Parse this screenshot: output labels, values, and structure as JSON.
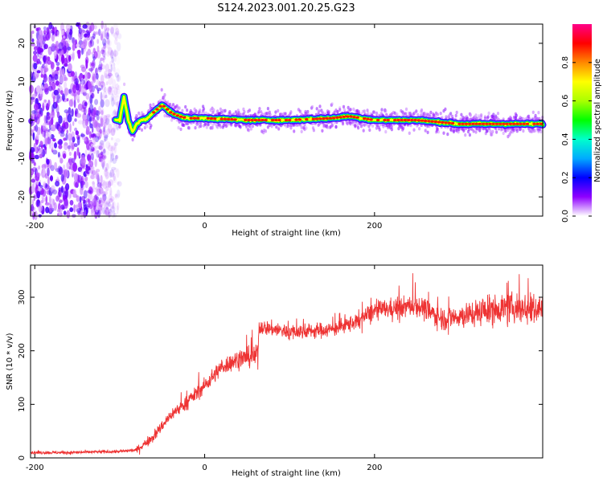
{
  "figure_title": "S124.2023.001.20.25.G23",
  "chart_data": [
    {
      "type": "heatmap",
      "name": "spectrogram",
      "xlabel": "Height of straight line (km)",
      "ylabel": "Frequency (Hz)",
      "xlim": [
        -205,
        398
      ],
      "ylim": [
        -25,
        25
      ],
      "xticks": [
        -200,
        0,
        200
      ],
      "yticks": [
        -20,
        -10,
        0,
        10,
        20
      ],
      "colorbar": {
        "label": "Normalized spectral amplitude",
        "range": [
          0,
          1
        ],
        "ticks": [
          "0.0",
          "0.2",
          "0.4",
          "0.6",
          "0.8"
        ],
        "colors": [
          "#ffffff",
          "#8f00ff",
          "#0000ff",
          "#00aaff",
          "#00ffcc",
          "#00ff00",
          "#aaff00",
          "#ffff00",
          "#ff8800",
          "#ff0000",
          "#ff0088"
        ]
      },
      "ridge": {
        "x": [
          -110,
          -100,
          -95,
          -90,
          -85,
          -80,
          -75,
          -70,
          -60,
          -50,
          -40,
          -30,
          -20,
          0,
          50,
          100,
          150,
          170,
          200,
          250,
          300,
          350,
          398
        ],
        "y": [
          0,
          0,
          6,
          0,
          -3,
          -1,
          0,
          0,
          2,
          4,
          2,
          1,
          0.5,
          0.5,
          0,
          0,
          0.5,
          1,
          0,
          0,
          -1,
          -1,
          -1
        ]
      },
      "noise_region_x": [
        -205,
        -100
      ]
    },
    {
      "type": "line",
      "name": "snr",
      "xlabel": "Height of straight line (km)",
      "ylabel": "SNR (10 * v/v)",
      "xlim": [
        -205,
        398
      ],
      "ylim": [
        0,
        360
      ],
      "xticks": [
        -200,
        0,
        200
      ],
      "yticks": [
        0,
        100,
        200,
        300
      ],
      "color": "#ee3333",
      "trend": {
        "x": [
          -205,
          -160,
          -100,
          -80,
          -60,
          -40,
          -20,
          0,
          20,
          40,
          60,
          63,
          64,
          100,
          150,
          180,
          200,
          250,
          280,
          300,
          350,
          398
        ],
        "y": [
          10,
          10,
          12,
          15,
          40,
          80,
          105,
          135,
          170,
          185,
          190,
          200,
          245,
          235,
          240,
          255,
          275,
          285,
          260,
          265,
          280,
          280
        ]
      }
    }
  ]
}
